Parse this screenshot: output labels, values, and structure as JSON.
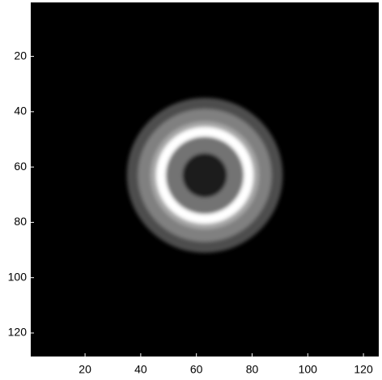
{
  "chart_data": {
    "type": "image",
    "xlim": [
      0.5,
      125.5
    ],
    "ylim": [
      0.5,
      128.5
    ],
    "xticks": [
      20,
      40,
      60,
      80,
      100,
      120
    ],
    "yticks": [
      20,
      40,
      60,
      80,
      100,
      120
    ],
    "y_reversed": true,
    "background": 0,
    "ring": {
      "center": [
        63,
        63
      ],
      "radii": [
        28,
        24,
        19.5,
        17.5,
        14,
        8
      ],
      "intensity": [
        0.3,
        0.5,
        0.65,
        1,
        0.45,
        0.12
      ]
    }
  }
}
